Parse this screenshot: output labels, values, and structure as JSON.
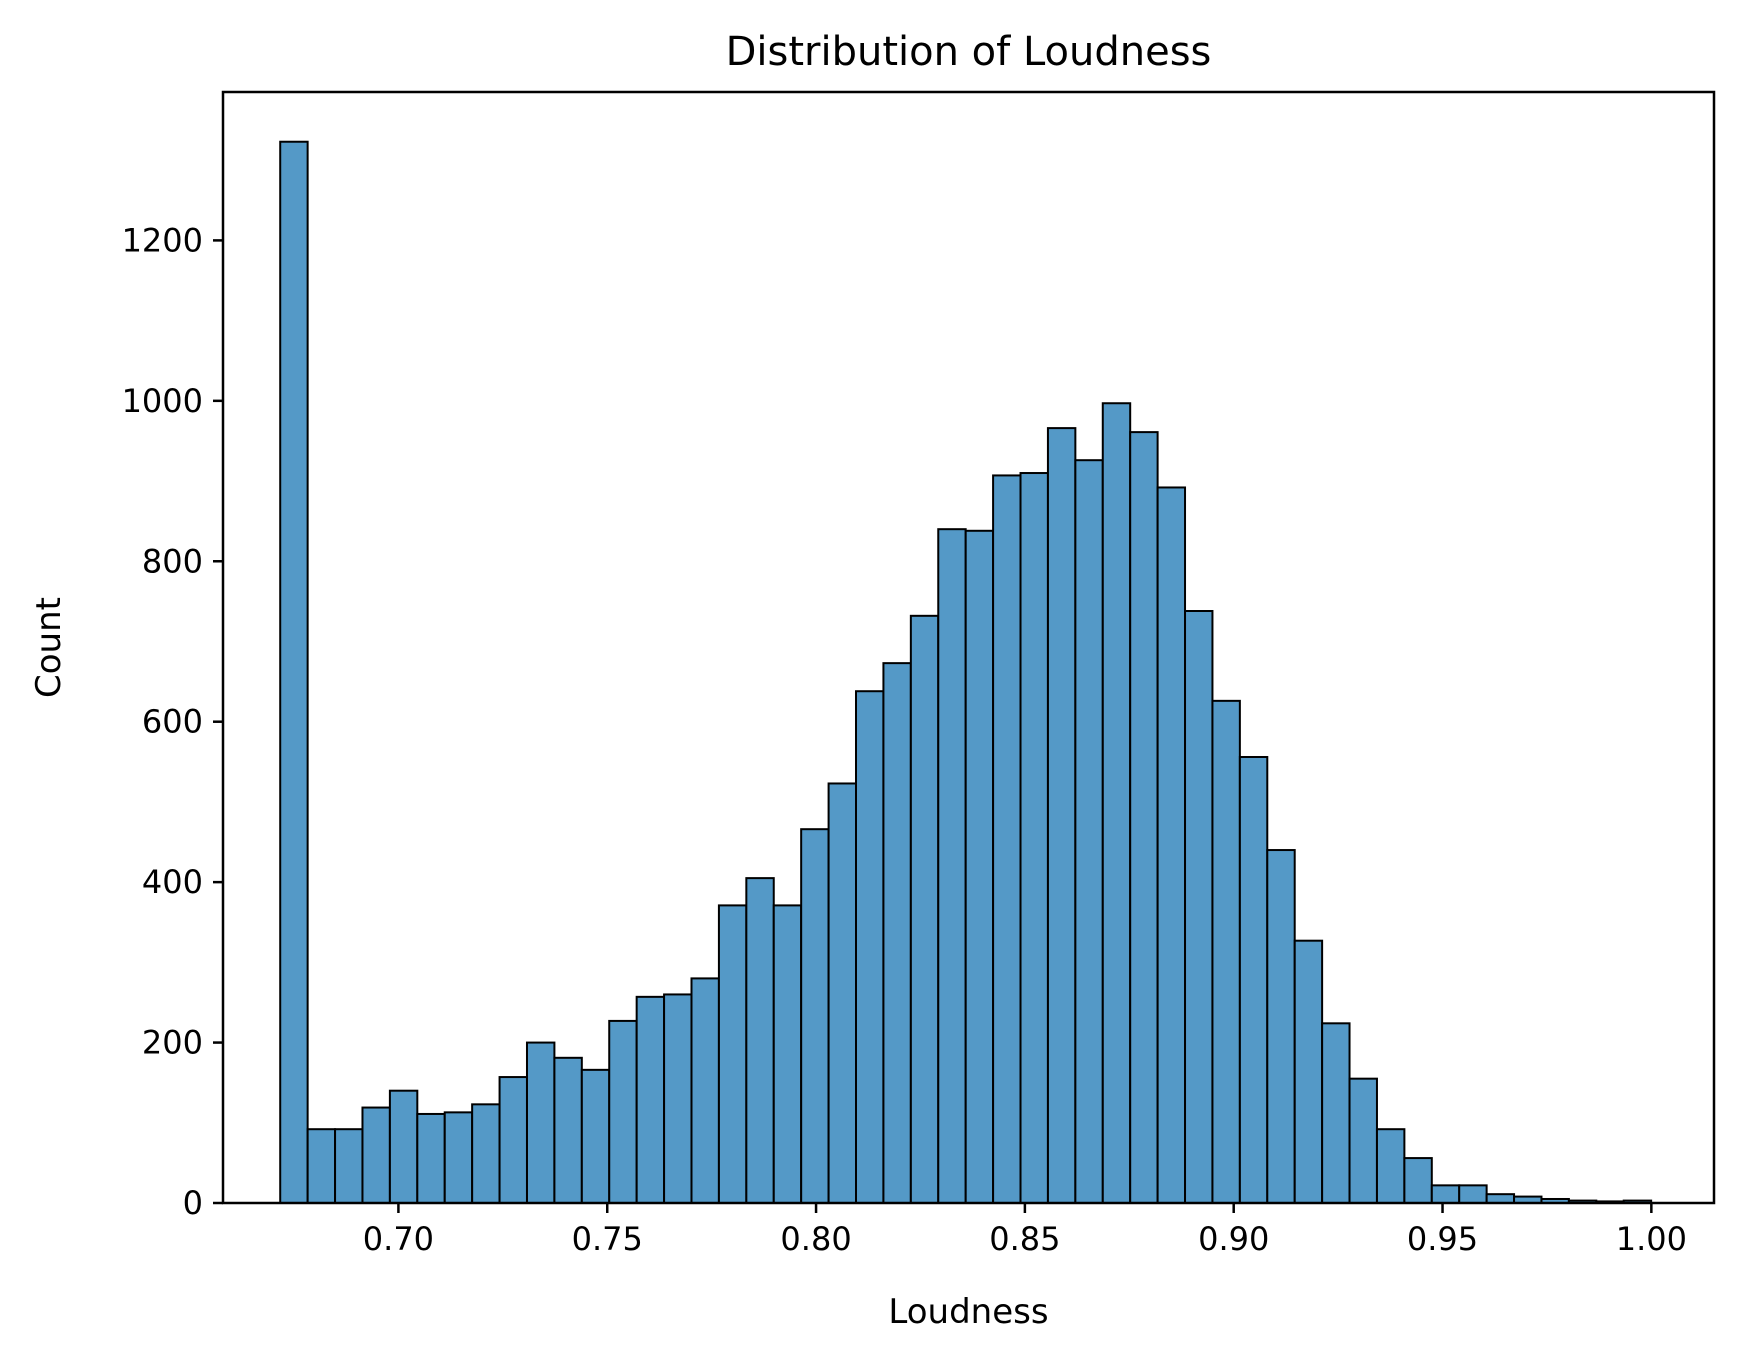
{
  "chart_data": {
    "type": "bar",
    "title": "Distribution of Loudness",
    "xlabel": "Loudness",
    "ylabel": "Count",
    "xlim": [
      0.658,
      1.015
    ],
    "ylim": [
      0,
      1385
    ],
    "x_ticks": [
      0.7,
      0.75,
      0.8,
      0.85,
      0.9,
      0.95,
      1.0
    ],
    "x_tick_labels": [
      "0.70",
      "0.75",
      "0.80",
      "0.85",
      "0.90",
      "0.95",
      "1.00"
    ],
    "y_ticks": [
      0,
      200,
      400,
      600,
      800,
      1000,
      1200
    ],
    "y_tick_labels": [
      "0",
      "200",
      "400",
      "600",
      "800",
      "1000",
      "1200"
    ],
    "bin_start": 0.6717,
    "bin_width": 0.006565,
    "values": [
      1323,
      92,
      92,
      119,
      140,
      111,
      113,
      123,
      157,
      200,
      181,
      166,
      227,
      257,
      260,
      280,
      371,
      405,
      371,
      466,
      523,
      638,
      673,
      732,
      840,
      838,
      907,
      910,
      966,
      926,
      997,
      961,
      892,
      738,
      626,
      556,
      440,
      327,
      224,
      155,
      92,
      56,
      22,
      22,
      11,
      8,
      5,
      3,
      2,
      3
    ],
    "bar_color": "#5499c7",
    "grid": false,
    "legend": "none"
  }
}
